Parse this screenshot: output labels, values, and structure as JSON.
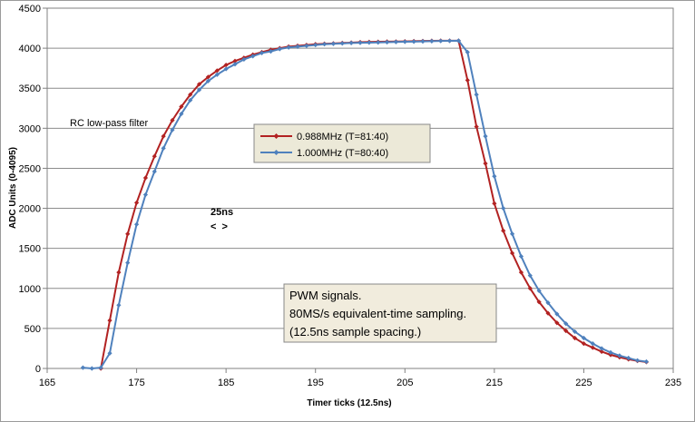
{
  "chart_data": {
    "type": "line",
    "title": "",
    "xlabel": "Timer ticks (12.5ns)",
    "ylabel": "ADC Units (0-4095)",
    "xlim": [
      165,
      235
    ],
    "ylim": [
      0,
      4500
    ],
    "xticks": [
      165,
      175,
      185,
      195,
      205,
      215,
      225,
      235
    ],
    "yticks": [
      0,
      500,
      1000,
      1500,
      2000,
      2500,
      3000,
      3500,
      4000,
      4500
    ],
    "grid": "horizontal",
    "legend_position": "center-left",
    "series": [
      {
        "name": "0.988MHz (T=81:40)",
        "color": "#b22222",
        "x": [
          171,
          172,
          173,
          174,
          175,
          176,
          177,
          178,
          179,
          180,
          181,
          182,
          183,
          184,
          185,
          186,
          187,
          188,
          189,
          190,
          191,
          192,
          193,
          194,
          195,
          196,
          197,
          198,
          199,
          200,
          201,
          202,
          203,
          204,
          205,
          206,
          207,
          208,
          209,
          210,
          211,
          212,
          213,
          214,
          215,
          216,
          217,
          218,
          219,
          220,
          221,
          222,
          223,
          224,
          225,
          226,
          227,
          228,
          229,
          230,
          231,
          232
        ],
        "values": [
          0,
          600,
          1200,
          1680,
          2070,
          2380,
          2650,
          2900,
          3100,
          3270,
          3420,
          3550,
          3640,
          3720,
          3790,
          3840,
          3880,
          3920,
          3950,
          3980,
          4000,
          4020,
          4030,
          4040,
          4050,
          4055,
          4060,
          4065,
          4070,
          4075,
          4078,
          4080,
          4082,
          4083,
          4085,
          4088,
          4090,
          4092,
          4093,
          4093,
          4093,
          3600,
          3020,
          2560,
          2060,
          1720,
          1440,
          1200,
          1000,
          830,
          690,
          570,
          470,
          380,
          310,
          260,
          210,
          170,
          140,
          115,
          95,
          80
        ]
      },
      {
        "name": "1.000MHz (T=80:40)",
        "color": "#4f81bd",
        "x": [
          169,
          170,
          171,
          172,
          173,
          174,
          175,
          176,
          177,
          178,
          179,
          180,
          181,
          182,
          183,
          184,
          185,
          186,
          187,
          188,
          189,
          190,
          191,
          192,
          193,
          194,
          195,
          196,
          197,
          198,
          199,
          200,
          201,
          202,
          203,
          204,
          205,
          206,
          207,
          208,
          209,
          210,
          211,
          212,
          213,
          214,
          215,
          216,
          217,
          218,
          219,
          220,
          221,
          222,
          223,
          224,
          225,
          226,
          227,
          228,
          229,
          230,
          231,
          232
        ],
        "values": [
          10,
          0,
          10,
          190,
          790,
          1320,
          1800,
          2170,
          2460,
          2750,
          2980,
          3180,
          3350,
          3480,
          3590,
          3670,
          3740,
          3800,
          3860,
          3900,
          3940,
          3960,
          3990,
          4010,
          4020,
          4030,
          4040,
          4050,
          4055,
          4060,
          4065,
          4068,
          4070,
          4072,
          4075,
          4078,
          4080,
          4082,
          4085,
          4088,
          4090,
          4092,
          4093,
          3950,
          3420,
          2900,
          2400,
          2000,
          1680,
          1400,
          1160,
          970,
          820,
          680,
          560,
          460,
          380,
          310,
          250,
          200,
          160,
          130,
          100,
          85
        ]
      }
    ],
    "annotations": {
      "rc_label": "RC low-pass filter",
      "spacing_label": "25ns",
      "spacing_arrows": "<  >",
      "info_lines": [
        "PWM signals.",
        "80MS/s equivalent-time sampling.",
        "(12.5ns sample spacing.)"
      ]
    }
  }
}
